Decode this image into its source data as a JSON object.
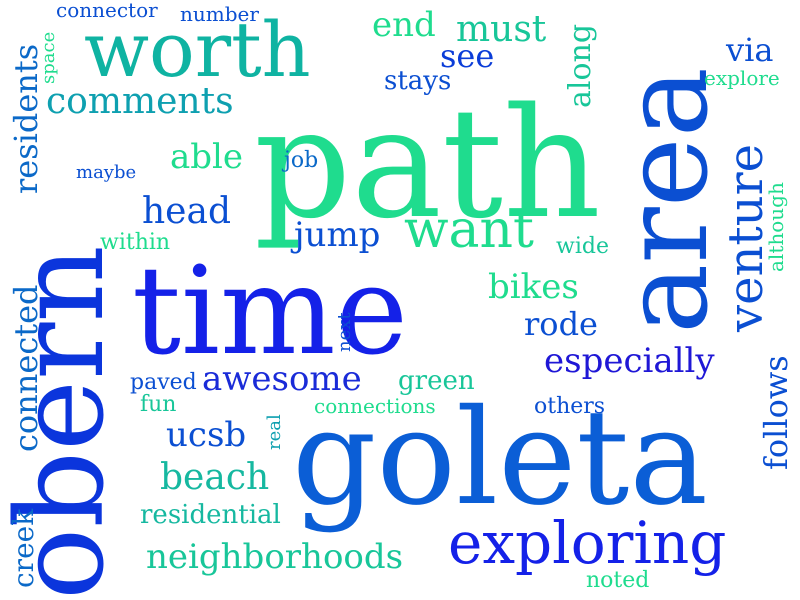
{
  "words": [
    {
      "text": "path",
      "color": "#1fdc8e"
    },
    {
      "text": "goleta",
      "color": "#0b5ed6"
    },
    {
      "text": "time",
      "color": "#1421e8"
    },
    {
      "text": "obern",
      "color": "#0b35dc"
    },
    {
      "text": "area",
      "color": "#0b4fd2"
    },
    {
      "text": "worth",
      "color": "#0fb3a2"
    },
    {
      "text": "exploring",
      "color": "#1421e8"
    },
    {
      "text": "want",
      "color": "#1fdc8e"
    },
    {
      "text": "venture",
      "color": "#0b4fd2"
    },
    {
      "text": "comments",
      "color": "#0ea0b0"
    },
    {
      "text": "neighborhoods",
      "color": "#18c699"
    },
    {
      "text": "awesome",
      "color": "#1a2bd8"
    },
    {
      "text": "especially",
      "color": "#1f17d6"
    },
    {
      "text": "beach",
      "color": "#16b8a0"
    },
    {
      "text": "head",
      "color": "#0b4fd2"
    },
    {
      "text": "see",
      "color": "#0b3dd8"
    },
    {
      "text": "must",
      "color": "#18c699"
    },
    {
      "text": "end",
      "color": "#1fdc8e"
    },
    {
      "text": "able",
      "color": "#1fdc8e"
    },
    {
      "text": "jump",
      "color": "#0b4fd2"
    },
    {
      "text": "bikes",
      "color": "#1fdc8e"
    },
    {
      "text": "rode",
      "color": "#0b4fd2"
    },
    {
      "text": "ucsb",
      "color": "#0b4fd2"
    },
    {
      "text": "via",
      "color": "#0b4fd2"
    },
    {
      "text": "residents",
      "color": "#0b69c8"
    },
    {
      "text": "connected",
      "color": "#0b69c8"
    },
    {
      "text": "follows",
      "color": "#0b4fd2"
    },
    {
      "text": "along",
      "color": "#18c699"
    },
    {
      "text": "creek",
      "color": "#0b69c8"
    },
    {
      "text": "residential",
      "color": "#16b8a0"
    },
    {
      "text": "stays",
      "color": "#0b4fd2"
    },
    {
      "text": "green",
      "color": "#18c699"
    },
    {
      "text": "paved",
      "color": "#0b4fd2"
    },
    {
      "text": "fun",
      "color": "#18c699"
    },
    {
      "text": "connections",
      "color": "#1fdc8e"
    },
    {
      "text": "others",
      "color": "#0b4fd2"
    },
    {
      "text": "within",
      "color": "#1fdc8e"
    },
    {
      "text": "wide",
      "color": "#18c699"
    },
    {
      "text": "although",
      "color": "#1fdc8e"
    },
    {
      "text": "explore",
      "color": "#1fdc8e"
    },
    {
      "text": "number",
      "color": "#0b4fd2"
    },
    {
      "text": "connector",
      "color": "#0b4fd2"
    },
    {
      "text": "space",
      "color": "#1fdc8e"
    },
    {
      "text": "maybe",
      "color": "#0b4fd2"
    },
    {
      "text": "job",
      "color": "#0b69c8"
    },
    {
      "text": "next",
      "color": "#0b4fd2"
    },
    {
      "text": "real",
      "color": "#0ea0b0"
    },
    {
      "text": "noted",
      "color": "#1fdc8e"
    }
  ]
}
